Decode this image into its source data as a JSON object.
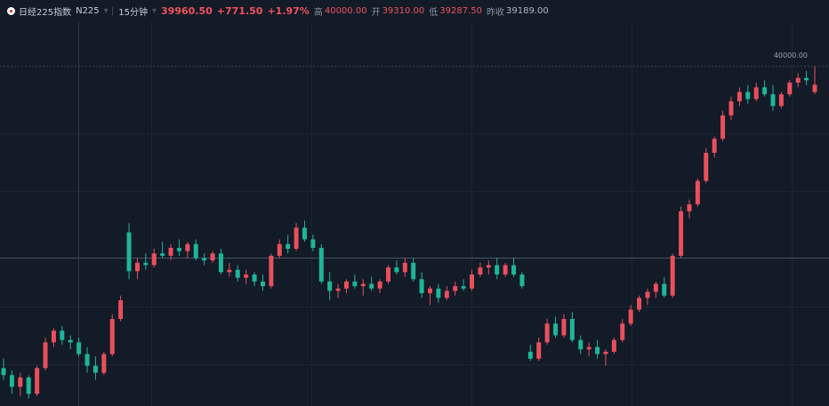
{
  "header": {
    "name": "日经225指数",
    "symbol": "N225",
    "interval": "15分钟",
    "price": "39960.50",
    "change": "+771.50",
    "change_pct": "+1.97%",
    "high_label": "高",
    "high": "40000.00",
    "open_label": "开",
    "open": "39310.00",
    "low_label": "低",
    "low": "39287.50",
    "prev_label": "昨收",
    "prev": "39189.00"
  },
  "chart_data": {
    "type": "candlestick",
    "up_color": "#e8505c",
    "down_color": "#1fb598",
    "ylim": [
      39274,
      40096
    ],
    "yticks": [
      {
        "value": 40000,
        "label": "40000.00"
      }
    ],
    "open": [
      39355,
      39340,
      39315,
      39335,
      39300,
      39355,
      39410,
      39435,
      39415,
      39410,
      39385,
      39360,
      39345,
      39385,
      39460,
      39645,
      39562,
      39580,
      39575,
      39600,
      39595,
      39612,
      39605,
      39620,
      39590,
      39585,
      39600,
      39560,
      39565,
      39548,
      39555,
      39540,
      39530,
      39595,
      39620,
      39610,
      39655,
      39630,
      39612,
      39540,
      39520,
      39525,
      39540,
      39530,
      39535,
      39525,
      39540,
      39570,
      39560,
      39580,
      39545,
      39515,
      39525,
      39505,
      39520,
      39530,
      39525,
      39555,
      39570,
      39575,
      39555,
      39575,
      39555,
      39390,
      39375,
      39410,
      39450,
      39425,
      39460,
      39415,
      39395,
      39400,
      39385,
      39390,
      39415,
      39450,
      39480,
      39505,
      39518,
      39535,
      39510,
      39595,
      39690,
      39705,
      39755,
      39815,
      39845,
      39895,
      39925,
      39945,
      39930,
      39955,
      39940,
      39915,
      39940,
      39965,
      39975,
      39945
    ],
    "high": [
      39375,
      39350,
      39345,
      39340,
      39360,
      39420,
      39440,
      39445,
      39425,
      39420,
      39400,
      39380,
      39390,
      39470,
      39510,
      39665,
      39590,
      39600,
      39610,
      39625,
      39620,
      39630,
      39625,
      39630,
      39600,
      39605,
      39610,
      39580,
      39575,
      39565,
      39560,
      39555,
      39600,
      39630,
      39640,
      39665,
      39670,
      39640,
      39620,
      39560,
      39535,
      39545,
      39555,
      39545,
      39550,
      39545,
      39575,
      39585,
      39590,
      39590,
      39560,
      39530,
      39535,
      39530,
      39540,
      39545,
      39565,
      39580,
      39585,
      39590,
      39580,
      39590,
      39560,
      39405,
      39420,
      39460,
      39465,
      39470,
      39475,
      39425,
      39410,
      39415,
      39395,
      39420,
      39460,
      39490,
      39510,
      39525,
      39540,
      39550,
      39600,
      39700,
      39715,
      39760,
      39825,
      39850,
      39905,
      39935,
      39955,
      39960,
      39965,
      39970,
      39960,
      39945,
      39970,
      39985,
      39990,
      40000
    ],
    "low": [
      39330,
      39300,
      39295,
      39290,
      39295,
      39350,
      39400,
      39405,
      39395,
      39380,
      39345,
      39330,
      39340,
      39380,
      39455,
      39545,
      39545,
      39565,
      39570,
      39590,
      39585,
      39595,
      39590,
      39585,
      39575,
      39580,
      39555,
      39550,
      39540,
      39535,
      39530,
      39520,
      39525,
      39590,
      39600,
      39605,
      39625,
      39605,
      39535,
      39500,
      39505,
      39515,
      39525,
      39510,
      39520,
      39515,
      39535,
      39555,
      39550,
      39540,
      39505,
      39490,
      39495,
      39500,
      39510,
      39520,
      39520,
      39550,
      39555,
      39545,
      39550,
      39550,
      39525,
      39370,
      39370,
      39405,
      39420,
      39420,
      39410,
      39385,
      39380,
      39375,
      39360,
      39385,
      39410,
      39445,
      39475,
      39490,
      39505,
      39505,
      39505,
      39590,
      39675,
      39700,
      39750,
      39805,
      39840,
      39885,
      39915,
      39920,
      39925,
      39935,
      39905,
      39910,
      39935,
      39955,
      39960,
      39940
    ],
    "close": [
      39340,
      39315,
      39335,
      39300,
      39355,
      39410,
      39435,
      39415,
      39410,
      39385,
      39360,
      39345,
      39385,
      39460,
      39500,
      39562,
      39580,
      39575,
      39600,
      39595,
      39612,
      39605,
      39620,
      39590,
      39585,
      39600,
      39560,
      39565,
      39548,
      39555,
      39540,
      39530,
      39595,
      39620,
      39610,
      39655,
      39630,
      39612,
      39540,
      39520,
      39525,
      39540,
      39530,
      39535,
      39525,
      39540,
      39570,
      39560,
      39580,
      39545,
      39515,
      39525,
      39505,
      39520,
      39530,
      39525,
      39555,
      39570,
      39575,
      39555,
      39575,
      39555,
      39530,
      39375,
      39410,
      39450,
      39425,
      39460,
      39415,
      39395,
      39400,
      39385,
      39390,
      39415,
      39450,
      39480,
      39505,
      39518,
      39535,
      39510,
      39595,
      39690,
      39705,
      39755,
      39815,
      39845,
      39895,
      39925,
      39945,
      39930,
      39955,
      39940,
      39915,
      39940,
      39965,
      39975,
      39970,
      39960.5
    ]
  }
}
